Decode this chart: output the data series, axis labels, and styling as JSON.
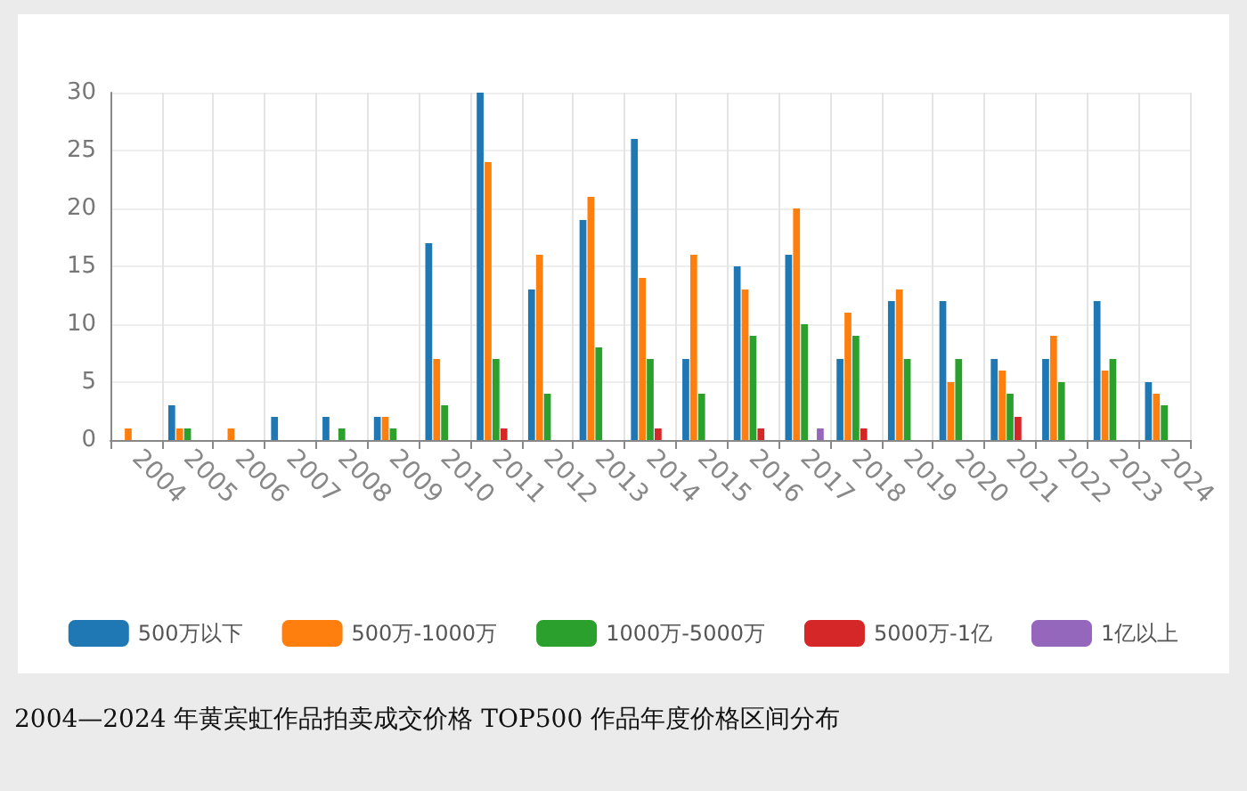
{
  "chart_data": {
    "type": "bar",
    "title": "2004—2024 年黄宾虹作品拍卖成交价格 TOP500 作品年度价格区间分布",
    "categories": [
      "2004",
      "2005",
      "2006",
      "2007",
      "2008",
      "2009",
      "2010",
      "2011",
      "2012",
      "2013",
      "2014",
      "2015",
      "2016",
      "2017",
      "2018",
      "2019",
      "2020",
      "2021",
      "2022",
      "2023",
      "2024"
    ],
    "series": [
      {
        "name": "500万以下",
        "color": "#1f77b4",
        "values": [
          0,
          3,
          0,
          2,
          2,
          2,
          17,
          30,
          13,
          19,
          26,
          7,
          15,
          16,
          7,
          12,
          12,
          7,
          7,
          12,
          5
        ]
      },
      {
        "name": "500万-1000万",
        "color": "#ff7f0e",
        "values": [
          1,
          1,
          1,
          0,
          0,
          2,
          7,
          24,
          16,
          21,
          14,
          16,
          13,
          20,
          11,
          13,
          5,
          6,
          9,
          6,
          4
        ]
      },
      {
        "name": "1000万-5000万",
        "color": "#2ca02c",
        "values": [
          0,
          1,
          0,
          0,
          1,
          1,
          3,
          7,
          4,
          8,
          7,
          4,
          9,
          10,
          9,
          7,
          7,
          4,
          5,
          7,
          3
        ]
      },
      {
        "name": "5000万-1亿",
        "color": "#d62728",
        "values": [
          0,
          0,
          0,
          0,
          0,
          0,
          0,
          1,
          0,
          0,
          1,
          0,
          1,
          0,
          1,
          0,
          0,
          2,
          0,
          0,
          0
        ]
      },
      {
        "name": "1亿以上",
        "color": "#9467bd",
        "values": [
          0,
          0,
          0,
          0,
          0,
          0,
          0,
          0,
          0,
          0,
          0,
          0,
          0,
          1,
          0,
          0,
          0,
          0,
          0,
          0,
          0
        ]
      }
    ],
    "ylim": [
      0,
      30
    ],
    "yticks": [
      0,
      5,
      10,
      15,
      20,
      25,
      30
    ],
    "grid": true,
    "legend": "bottom"
  }
}
